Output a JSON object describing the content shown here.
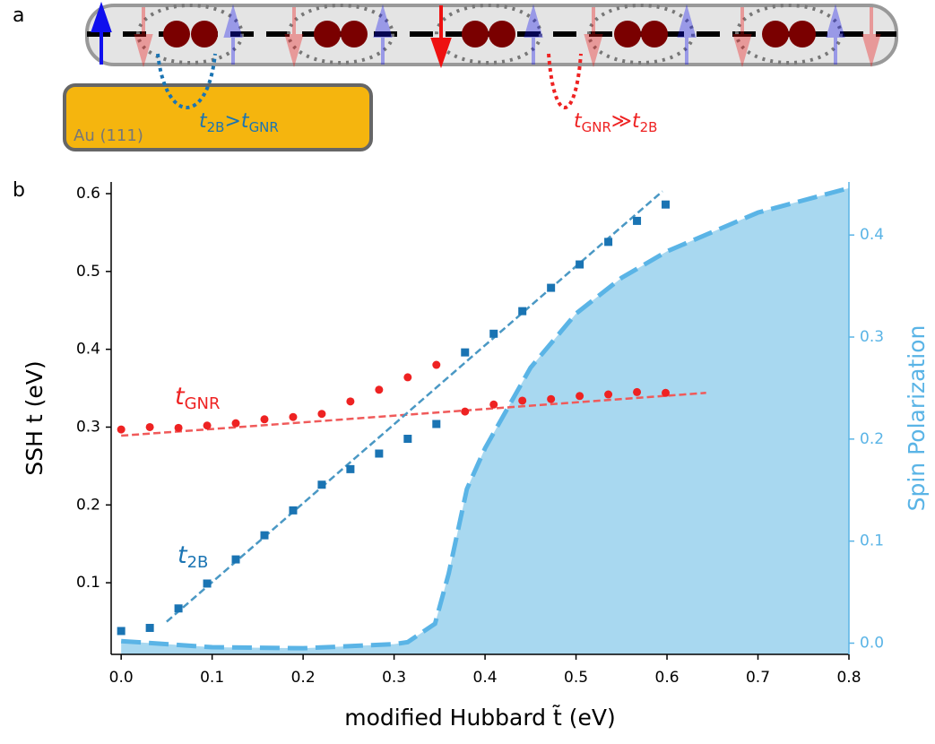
{
  "panel_labels": [
    "a",
    "b"
  ],
  "schematic": {
    "substrate": "Au (111)",
    "left_hopping": [
      "t",
      "2B",
      ">",
      "t",
      "GNR"
    ],
    "right_hopping": [
      "t",
      "GNR",
      "≫",
      "t",
      "2B"
    ]
  },
  "chart_data": {
    "type": "scatter",
    "xlabel": "modified Hubbard t̃ (eV)",
    "ylabel": "SSH t (eV)",
    "y2label": "Spin Polarization",
    "xlim": [
      -0.011,
      0.8
    ],
    "ylim": [
      0.008,
      0.615
    ],
    "y2lim": [
      -0.011,
      0.452
    ],
    "xticks": [
      {
        "value": 0,
        "label": "0.0"
      },
      0.1,
      0.2,
      0.3,
      0.4,
      0.5,
      0.6,
      0.7,
      0.8
    ],
    "yticks": [
      0.1,
      0.2,
      0.3,
      0.4,
      0.5,
      0.6
    ],
    "y2ticks": [
      {
        "value": 0,
        "label": "0.0"
      },
      0.1,
      0.2,
      0.3,
      0.4
    ],
    "y2color": "#5ab4e6",
    "x": [
      0,
      0.0315,
      0.063,
      0.0945,
      0.126,
      0.1575,
      0.189,
      0.2205,
      0.252,
      0.2835,
      0.315,
      0.3465,
      0.378,
      0.4095,
      0.441,
      0.4725,
      0.504,
      0.5355,
      0.567,
      0.5985
    ],
    "series": [
      {
        "color": "#ee2222",
        "marker": "circle",
        "values": [
          0.297,
          0.3,
          0.299,
          0.302,
          0.305,
          0.31,
          0.313,
          0.317,
          0.333,
          0.348,
          0.364,
          0.38,
          0.32,
          0.329,
          0.334,
          0.336,
          0.34,
          0.342,
          0.345,
          0.344
        ]
      },
      {
        "color": "#1a74b3",
        "marker": "square",
        "values": [
          0.038,
          0.042,
          0.067,
          0.099,
          0.13,
          0.161,
          0.193,
          0.226,
          0.246,
          0.266,
          0.285,
          0.304,
          0.396,
          0.42,
          0.449,
          0.479,
          0.509,
          0.538,
          0.565,
          0.586
        ]
      }
    ],
    "fits": [
      {
        "color": "#f05a5a",
        "x": [
          0,
          0.643
        ],
        "values": [
          0.289,
          0.344
        ]
      },
      {
        "color": "#4a98c4",
        "x": [
          0.05,
          0.595
        ],
        "values": [
          0.05,
          0.603
        ]
      }
    ],
    "area": {
      "axis": "y2",
      "color": "#a8d8f0",
      "x": [
        0,
        0.1,
        0.2,
        0.3,
        0.315,
        0.345,
        0.36,
        0.38,
        0.4,
        0.45,
        0.5,
        0.55,
        0.6,
        0.7,
        0.8
      ],
      "values": [
        0.002,
        -0.004,
        -0.005,
        -0.001,
        0.001,
        0.019,
        0.068,
        0.151,
        0.191,
        0.27,
        0.323,
        0.358,
        0.384,
        0.422,
        0.446
      ]
    },
    "annotations": [
      {
        "text": "t",
        "sub": "GNR",
        "color": "#ee2222"
      },
      {
        "text": "t",
        "sub": "2B",
        "color": "#1a74b3"
      }
    ]
  }
}
